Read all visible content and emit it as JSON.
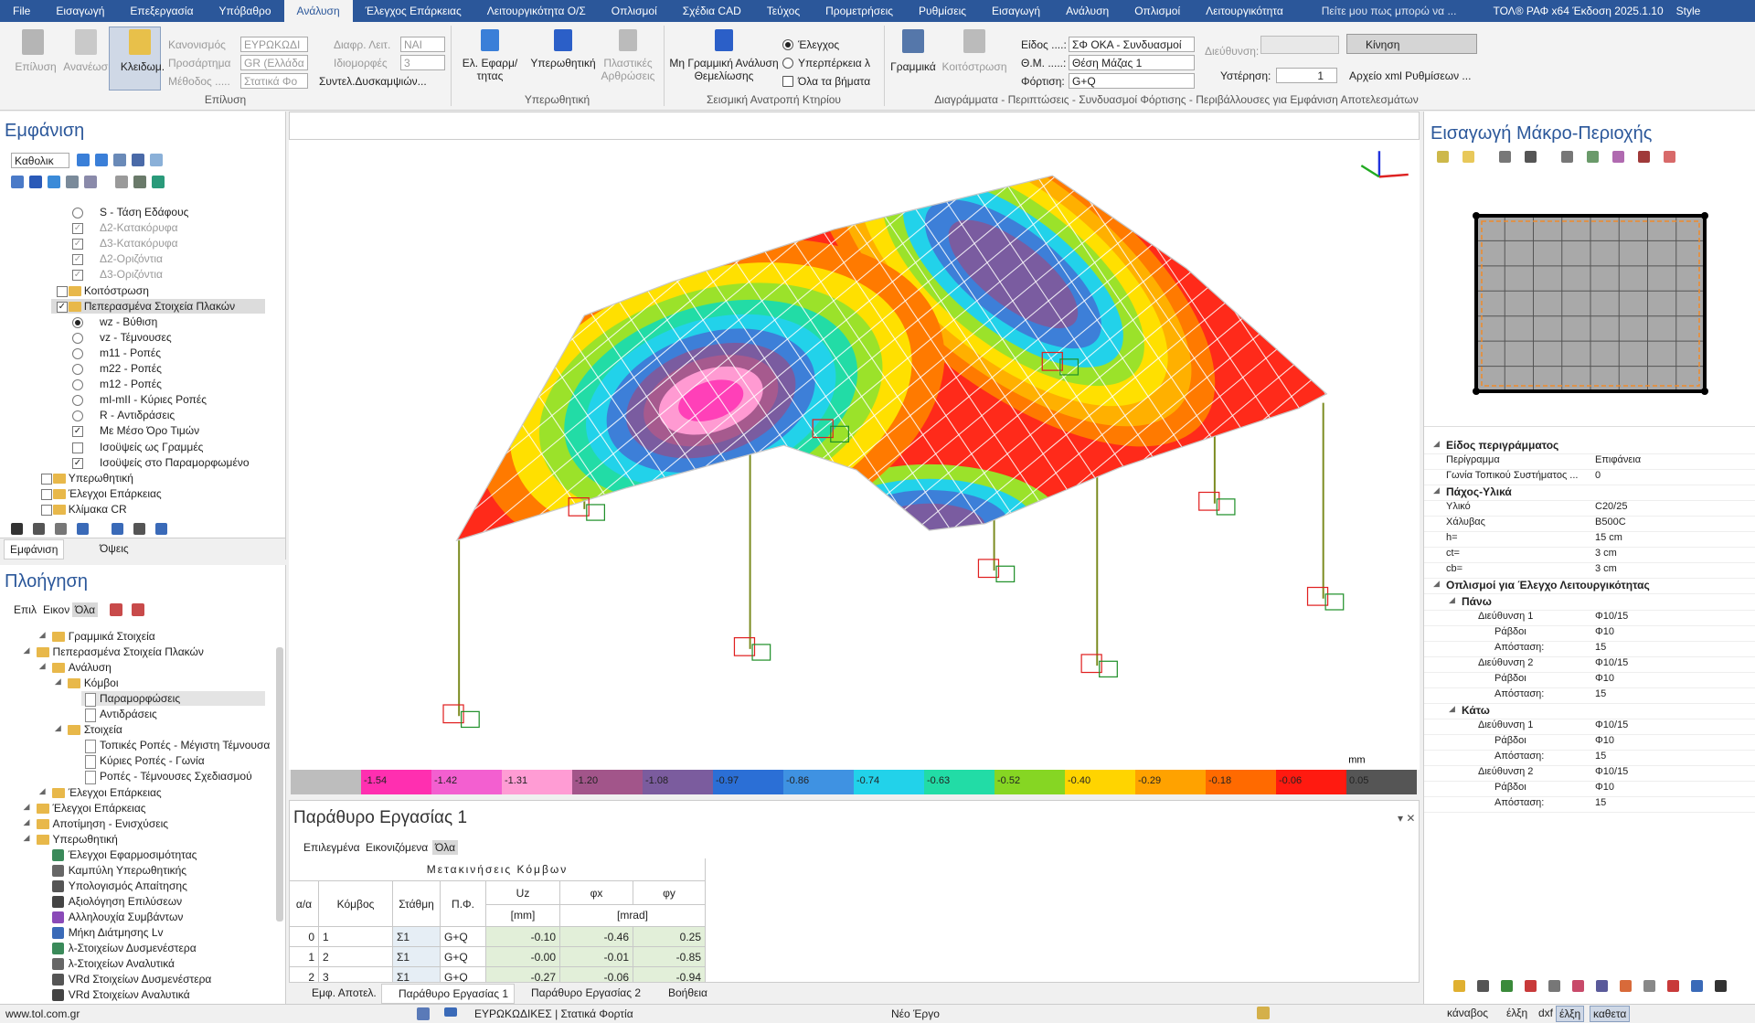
{
  "menu": [
    "File",
    "Εισαγωγή",
    "Επεξεργασία",
    "Υπόβαθρο",
    "Ανάλυση",
    "Έλεγχος Επάρκειας",
    "Λειτουργικότητα Ο/Σ",
    "Οπλισμοί",
    "Σχέδια CAD",
    "Τεύχος",
    "Προμετρήσεις",
    "Ρυθμίσεις",
    "Εισαγωγή",
    "Ανάλυση",
    "Οπλισμοί",
    "Λειτουργικότητα"
  ],
  "search": "Πείτε μου πως μπορώ να ...",
  "product": "ΤΟΛ® ΡΑΦ x64 Έκδοση 2025.1.10",
  "style": "Style",
  "ribbon": {
    "solve": {
      "buttons": [
        "Επίλυση",
        "Ανανέωση",
        "Κλειδωμ."
      ],
      "fields": [
        {
          "label": "Κανονισμός",
          "value": "ΕΥΡΩΚΩΔΙ"
        },
        {
          "label": "Προσάρτημα",
          "value": "GR (Ελλάδα"
        },
        {
          "label": "Μέθοδος .....",
          "value": "Στατικά Φο"
        },
        {
          "label": "Διαφρ. Λειτ.",
          "value": "ΝΑΙ"
        },
        {
          "label": "Ιδιομορφές",
          "value": 3
        }
      ],
      "stiffness": "Συντελ.Δυσκαμψιών...",
      "label": "Επίλυση"
    },
    "pushover": {
      "buttons": [
        "Ελ. Εφαρμ/τητας",
        "Υπερωθητική",
        "Πλαστικές Αρθρώσεις"
      ],
      "label": "Υπερωθητική"
    },
    "overturn": {
      "button": "Μη Γραμμική Ανάλυση Θεμελίωσης",
      "options": [
        "Έλεγχος",
        "Υπερπέρκεια λ",
        "Όλα τα βήματα"
      ],
      "label": "Σεισμική Ανατροπή Κτηρίου"
    },
    "diagrams": {
      "buttons": [
        "Γραμμικά",
        "Κοιτόστρωση"
      ],
      "fields": [
        {
          "label": "Είδος ....:",
          "value": "ΣΦ ΟΚΑ - Συνδυασμοί"
        },
        {
          "label": "Θ.Μ. .....:",
          "value": "Θέση Μάζας 1"
        },
        {
          "label": "Φόρτιση:",
          "value": "G+Q"
        }
      ],
      "direction": "Διεύθυνση:",
      "hysteresis": {
        "label": "Υστέρηση:",
        "value": 1
      },
      "motion": "Κίνηση",
      "xml": "Αρχείο xml Ρυθμίσεων ...",
      "label": "Διαγράμματα - Περιπτώσεις - Συνδυασμοί Φόρτισης - Περιβάλλουσες για Εμφάνιση Αποτελεσμάτων"
    }
  },
  "appearance_panel": {
    "title": "Εμφάνιση",
    "dropdown": "Καθολικ",
    "tree": [
      "S - Τάση Εδάφους",
      "Δ2-Κατακόρυφα",
      "Δ3-Κατακόρυφα",
      "Δ2-Οριζόντια",
      "Δ3-Οριζόντια",
      "Κοιτόστρωση",
      "Πεπερασμένα Στοιχεία Πλακών",
      "wz - Βύθιση",
      "vz - Τέμνουσες",
      "m11 - Ροπές",
      "m22 - Ροπές",
      "m12 - Ροπές",
      "mI-mII - Κύριες Ροπές",
      "R - Αντιδράσεις",
      "Με Μέσο Όρο Τιμών",
      "Ισοϋψείς ως Γραμμές",
      "Ισοϋψείς στο Παραμορφωμένο",
      "Υπερωθητική",
      "Έλεγχοι Επάρκειας",
      "Κλίμακα CR"
    ],
    "tabs": [
      "Εμφάνιση",
      "Όψεις"
    ]
  },
  "navigation_panel": {
    "title": "Πλοήγηση",
    "tabs": [
      "Επιλ",
      "Εικον",
      "Όλα"
    ],
    "tree": [
      "Γραμμικά Στοιχεία",
      "Πεπερασμένα Στοιχεία Πλακών",
      "Ανάλυση",
      "Κόμβοι",
      "Παραμορφώσεις",
      "Αντιδράσεις",
      "Στοιχεία",
      "Τοπικές Ροπές - Μέγιστη Τέμνουσα",
      "Κύριες Ροπές - Γωνία",
      "Ροπές - Τέμνουσες Σχεδιασμού",
      "Έλεγχοι Επάρκειας",
      "Έλεγχοι Επάρκειας",
      "Αποτίμηση - Ενισχύσεις",
      "Υπερωθητική",
      "Έλεγχοι Εφαρμοσιμότητας",
      "Καμπύλη Υπερωθητικής",
      "Υπολογισμός Απαίτησης",
      "Αξιολόγηση Επιλύσεων",
      "Αλληλουχία Συμβάντων",
      "Μήκη Διάτμησης Lv",
      "λ-Στοιχείων Δυσμενέστερα",
      "λ-Στοιχείων Αναλυτικά",
      "VRd Στοιχείων Δυσμενέστερα",
      "VRd Στοιχείων Αναλυτικά"
    ]
  },
  "view": {
    "unit": "mm",
    "legend_colors": [
      "#bdbdbd",
      "#ff2fb0",
      "#f35fd0",
      "#ff9cd4",
      "#a2558a",
      "#7b5c9e",
      "#2b6fd6",
      "#3f92e2",
      "#22d2ea",
      "#22dca6",
      "#86d623",
      "#ffd400",
      "#ffa200",
      "#ff6a00",
      "#ff1a10",
      "#555555"
    ],
    "legend_labels": [
      "-1.54",
      "-1.42",
      "-1.31",
      "-1.20",
      "-1.08",
      "-0.97",
      "-0.86",
      "-0.74",
      "-0.63",
      "-0.52",
      "-0.40",
      "-0.29",
      "-0.18",
      "-0.06",
      "0.05"
    ]
  },
  "work_window": {
    "title": "Παράθυρο Εργασίας 1",
    "tabs": [
      "Επιλεγμένα",
      "Εικονιζόμενα",
      "Όλα"
    ],
    "table": {
      "title": "Μετακινήσεις Κόμβων",
      "headers": [
        "α/α",
        "Κόμβος",
        "Στάθμη",
        "Π.Φ.",
        "Uz",
        "φx",
        "φy"
      ],
      "units": [
        "[mm]",
        "[mrad]"
      ],
      "rows": [
        [
          0,
          1,
          "Σ1",
          "G+Q",
          "-0.10",
          "-0.46",
          "0.25"
        ],
        [
          1,
          2,
          "Σ1",
          "G+Q",
          "-0.00",
          "-0.01",
          "-0.85"
        ],
        [
          2,
          3,
          "Σ1",
          "G+Q",
          "-0.27",
          "-0.06",
          "-0.94"
        ]
      ]
    },
    "bottom_tabs": [
      "Εμφ. Αποτελ.",
      "Παράθυρο Εργασίας 1",
      "Παράθυρο Εργασίας 2",
      "Βοήθεια"
    ]
  },
  "macro_panel": {
    "title": "Εισαγωγή Μάκρο-Περιοχής",
    "properties": [
      {
        "name": "Είδος περιγράμματος"
      },
      {
        "name": "Περίγραμμα",
        "value": "Επιφάνεια"
      },
      {
        "name": "Γωνία Τοπικού Συστήματος ...",
        "value": 0
      },
      {
        "name": "Πάχος-Υλικά"
      },
      {
        "name": "Υλικό",
        "value": "C20/25"
      },
      {
        "name": "Χάλυβας",
        "value": "B500C"
      },
      {
        "name": "h=",
        "value": "15 cm"
      },
      {
        "name": "ct=",
        "value": "3 cm"
      },
      {
        "name": "cb=",
        "value": "3 cm"
      },
      {
        "name": "Οπλισμοί για Έλεγχο Λειτουργικότητας"
      },
      {
        "name": "Πάνω"
      },
      {
        "name": "Διεύθυνση 1",
        "value": "Φ10/15"
      },
      {
        "name": "Ράβδοι",
        "value": "Φ10"
      },
      {
        "name": "Απόσταση:",
        "value": 15
      },
      {
        "name": "Διεύθυνση 2",
        "value": "Φ10/15"
      },
      {
        "name": "Ράβδοι",
        "value": "Φ10"
      },
      {
        "name": "Απόσταση:",
        "value": 15
      },
      {
        "name": "Κάτω"
      },
      {
        "name": "Διεύθυνση 1",
        "value": "Φ10/15"
      },
      {
        "name": "Ράβδοι",
        "value": "Φ10"
      },
      {
        "name": "Απόσταση:",
        "value": 15
      },
      {
        "name": "Διεύθυνση 2",
        "value": "Φ10/15"
      },
      {
        "name": "Ράβδοι",
        "value": "Φ10"
      },
      {
        "name": "Απόσταση:",
        "value": 15
      }
    ]
  },
  "status": {
    "site": "www.tol.com.gr",
    "mode": "ΕΥΡΩΚΩΔΙΚΕΣ | Στατικά Φορτία",
    "project": "Νέο Έργο",
    "toggles": [
      "κάναβος",
      "έλξη",
      "dxf",
      "έλξη",
      "καθετα"
    ]
  }
}
